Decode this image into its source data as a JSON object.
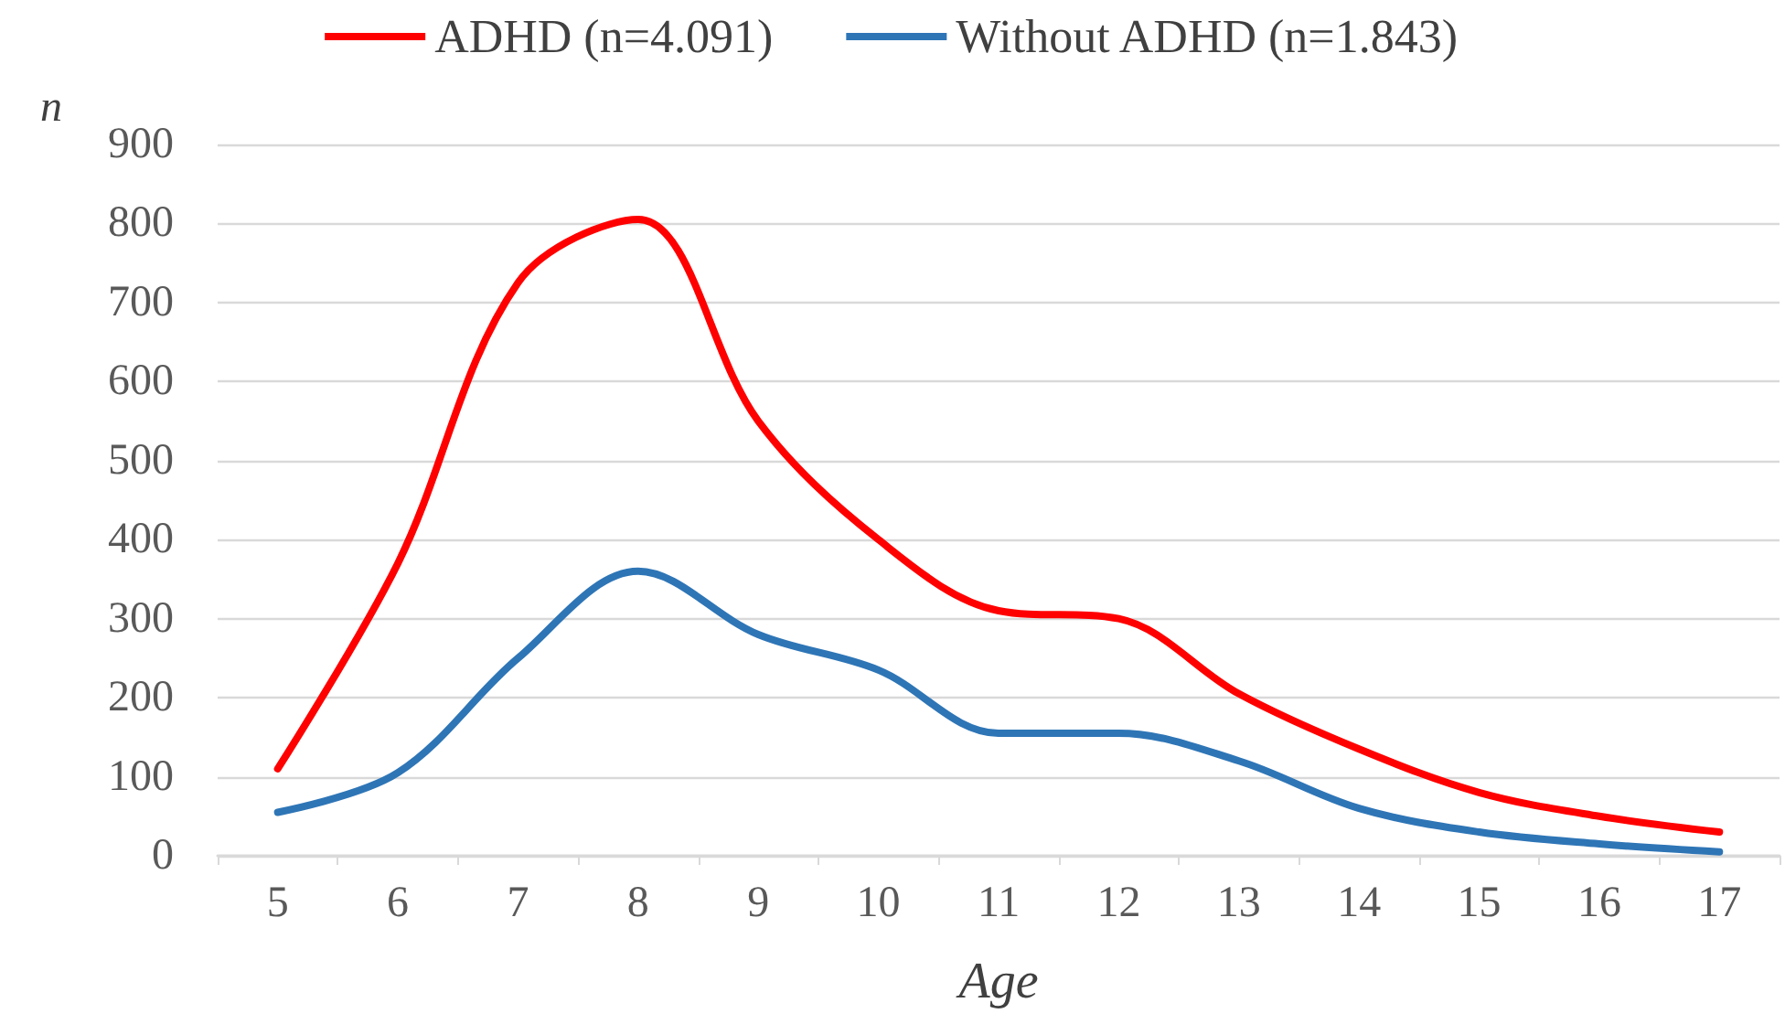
{
  "chart_data": {
    "type": "line",
    "xlabel": "Age",
    "ylabel": "n",
    "categories": [
      "5",
      "6",
      "7",
      "8",
      "9",
      "10",
      "11",
      "12",
      "13",
      "14",
      "15",
      "16",
      "17"
    ],
    "series": [
      {
        "name": "ADHD (n=4.091)",
        "color": "#ff0000",
        "values": [
          110,
          370,
          725,
          805,
          550,
          400,
          310,
          300,
          205,
          135,
          80,
          50,
          30
        ]
      },
      {
        "name": "Without ADHD (n=1.843)",
        "color": "#2e75b6",
        "values": [
          55,
          105,
          250,
          360,
          280,
          235,
          155,
          155,
          120,
          60,
          30,
          15,
          5
        ]
      }
    ],
    "ylim": [
      0,
      900
    ],
    "yticks": [
      0,
      100,
      200,
      300,
      400,
      500,
      600,
      700,
      800,
      900
    ],
    "grid": "y",
    "legend": "top",
    "marker": "none",
    "line_style": "solid"
  }
}
